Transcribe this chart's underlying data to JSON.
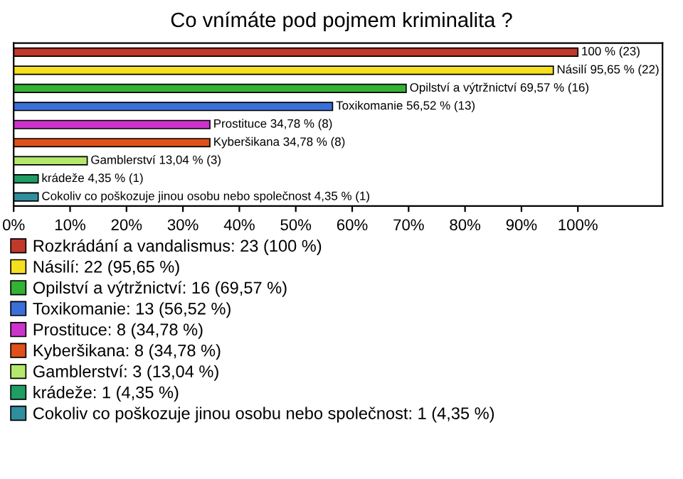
{
  "chart_data": {
    "type": "bar",
    "orientation": "horizontal",
    "title": "Co vnímáte pod pojmem kriminalita ?",
    "categories": [
      null,
      null,
      null,
      null,
      null,
      null,
      null,
      null,
      null
    ],
    "series": [
      {
        "name": "Rozkrádání a vandalismus: 23 (100 %)",
        "color": "#c0392b",
        "values": [
          100,
          null,
          null,
          null,
          null,
          null,
          null,
          null,
          null
        ],
        "value_labels": [
          "100 % (23)",
          null,
          null,
          null,
          null,
          null,
          null,
          null,
          null
        ]
      },
      {
        "name": "Násilí: 22 (95,65 %)",
        "color": "#f5e020",
        "values": [
          null,
          95.65,
          null,
          null,
          null,
          null,
          null,
          null,
          null
        ],
        "value_labels": [
          null,
          "Násilí 95,65 % (22)",
          null,
          null,
          null,
          null,
          null,
          null,
          null
        ]
      },
      {
        "name": "Opilství a výtržnictví: 16 (69,57 %)",
        "color": "#33b233",
        "values": [
          null,
          null,
          69.57,
          null,
          null,
          null,
          null,
          null,
          null
        ],
        "value_labels": [
          null,
          null,
          "Opilství a výtržnictví 69,57 % (16)",
          null,
          null,
          null,
          null,
          null,
          null
        ]
      },
      {
        "name": "Toxikomanie: 13 (56,52 %)",
        "color": "#3b6fd8",
        "values": [
          null,
          null,
          null,
          56.52,
          null,
          null,
          null,
          null,
          null
        ],
        "value_labels": [
          null,
          null,
          null,
          "Toxikomanie 56,52 % (13)",
          null,
          null,
          null,
          null,
          null
        ]
      },
      {
        "name": "Prostituce: 8 (34,78 %)",
        "color": "#cc33cc",
        "values": [
          null,
          null,
          null,
          null,
          34.78,
          null,
          null,
          null,
          null
        ],
        "value_labels": [
          null,
          null,
          null,
          null,
          "Prostituce 34,78 % (8)",
          null,
          null,
          null,
          null
        ]
      },
      {
        "name": "Kyberšikana: 8 (34,78 %)",
        "color": "#e0501a",
        "values": [
          null,
          null,
          null,
          null,
          null,
          34.78,
          null,
          null,
          null
        ],
        "value_labels": [
          null,
          null,
          null,
          null,
          null,
          "Kyberšikana 34,78 % (8)",
          null,
          null,
          null
        ]
      },
      {
        "name": "Gamblerství: 3 (13,04 %)",
        "color": "#b4e86c",
        "values": [
          null,
          null,
          null,
          null,
          null,
          null,
          13.04,
          null,
          null
        ],
        "value_labels": [
          null,
          null,
          null,
          null,
          null,
          null,
          "Gamblerství 13,04 % (3)",
          null,
          null
        ]
      },
      {
        "name": "krádeže: 1 (4,35 %)",
        "color": "#1f9e63",
        "values": [
          null,
          null,
          null,
          null,
          null,
          null,
          null,
          4.35,
          null
        ],
        "value_labels": [
          null,
          null,
          null,
          null,
          null,
          null,
          null,
          "krádeže 4,35 % (1)",
          null
        ]
      },
      {
        "name": "Cokoliv co poškozuje jinou osobu nebo společnost: 1 (4,35 %)",
        "color": "#2f8f9f",
        "values": [
          null,
          null,
          null,
          null,
          null,
          null,
          null,
          null,
          4.35
        ],
        "value_labels": [
          null,
          null,
          null,
          null,
          null,
          null,
          null,
          null,
          "Cokoliv co poškozuje jinou osobu nebo společnost 4,35 % (1)"
        ]
      }
    ],
    "xlim": [
      0,
      115
    ],
    "xticks": [
      {
        "value": 0,
        "label": "0%"
      },
      {
        "value": 10,
        "label": "10%"
      },
      {
        "value": 20,
        "label": "20%"
      },
      {
        "value": 30,
        "label": "30%"
      },
      {
        "value": 40,
        "label": "40%"
      },
      {
        "value": 50,
        "label": "50%"
      },
      {
        "value": 60,
        "label": "60%"
      },
      {
        "value": 70,
        "label": "70%"
      },
      {
        "value": 80,
        "label": "80%"
      },
      {
        "value": 90,
        "label": "90%"
      },
      {
        "value": 100,
        "label": "100%"
      }
    ],
    "tick_labels": "x",
    "grid": false,
    "legend": "bottom"
  }
}
